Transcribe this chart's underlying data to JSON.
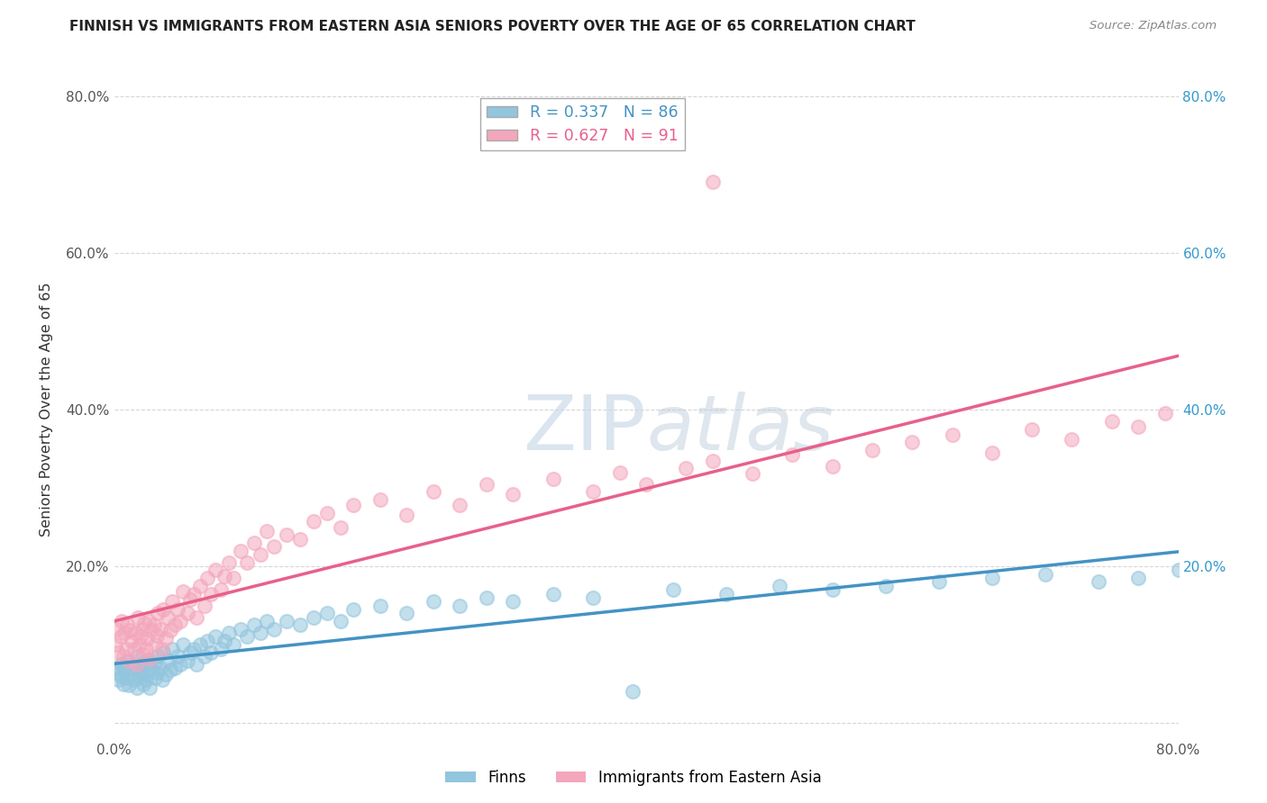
{
  "title": "FINNISH VS IMMIGRANTS FROM EASTERN ASIA SENIORS POVERTY OVER THE AGE OF 65 CORRELATION CHART",
  "source": "Source: ZipAtlas.com",
  "ylabel": "Seniors Poverty Over the Age of 65",
  "xlim": [
    0.0,
    0.8
  ],
  "ylim": [
    -0.02,
    0.82
  ],
  "ytick_positions": [
    0.0,
    0.2,
    0.4,
    0.6,
    0.8
  ],
  "ytick_labels_left": [
    "",
    "20.0%",
    "40.0%",
    "60.0%",
    "80.0%"
  ],
  "ytick_labels_right": [
    "",
    "20.0%",
    "40.0%",
    "60.0%",
    "80.0%"
  ],
  "r_finns": 0.337,
  "n_finns": 86,
  "r_eastern_asia": 0.627,
  "n_eastern_asia": 91,
  "finns_color": "#92c5de",
  "eastern_asia_color": "#f4a6bc",
  "finns_line_color": "#4393c3",
  "eastern_asia_line_color": "#e8608a",
  "legend_finns_label": "Finns",
  "legend_eastern_asia_label": "Immigrants from Eastern Asia",
  "background_color": "#ffffff",
  "grid_color": "#cccccc",
  "finns_scatter_x": [
    0.001,
    0.002,
    0.003,
    0.005,
    0.006,
    0.007,
    0.008,
    0.009,
    0.01,
    0.011,
    0.012,
    0.013,
    0.015,
    0.016,
    0.017,
    0.018,
    0.019,
    0.02,
    0.021,
    0.022,
    0.023,
    0.024,
    0.025,
    0.026,
    0.027,
    0.028,
    0.03,
    0.031,
    0.032,
    0.033,
    0.035,
    0.036,
    0.037,
    0.039,
    0.04,
    0.042,
    0.044,
    0.046,
    0.048,
    0.05,
    0.052,
    0.055,
    0.057,
    0.06,
    0.062,
    0.065,
    0.068,
    0.07,
    0.073,
    0.076,
    0.08,
    0.083,
    0.086,
    0.09,
    0.095,
    0.1,
    0.105,
    0.11,
    0.115,
    0.12,
    0.13,
    0.14,
    0.15,
    0.16,
    0.17,
    0.18,
    0.2,
    0.22,
    0.24,
    0.26,
    0.28,
    0.3,
    0.33,
    0.36,
    0.39,
    0.42,
    0.46,
    0.5,
    0.54,
    0.58,
    0.62,
    0.66,
    0.7,
    0.74,
    0.77,
    0.8
  ],
  "finns_scatter_y": [
    0.07,
    0.065,
    0.055,
    0.06,
    0.075,
    0.05,
    0.068,
    0.058,
    0.08,
    0.048,
    0.072,
    0.063,
    0.055,
    0.07,
    0.045,
    0.085,
    0.06,
    0.065,
    0.072,
    0.05,
    0.078,
    0.055,
    0.062,
    0.08,
    0.045,
    0.068,
    0.075,
    0.058,
    0.065,
    0.085,
    0.07,
    0.055,
    0.09,
    0.062,
    0.08,
    0.068,
    0.095,
    0.07,
    0.085,
    0.075,
    0.1,
    0.08,
    0.09,
    0.095,
    0.075,
    0.1,
    0.085,
    0.105,
    0.09,
    0.11,
    0.095,
    0.105,
    0.115,
    0.1,
    0.12,
    0.11,
    0.125,
    0.115,
    0.13,
    0.12,
    0.13,
    0.125,
    0.135,
    0.14,
    0.13,
    0.145,
    0.15,
    0.14,
    0.155,
    0.15,
    0.16,
    0.155,
    0.165,
    0.16,
    0.04,
    0.17,
    0.165,
    0.175,
    0.17,
    0.175,
    0.18,
    0.185,
    0.19,
    0.18,
    0.185,
    0.195
  ],
  "eastern_asia_scatter_x": [
    0.001,
    0.002,
    0.003,
    0.005,
    0.006,
    0.007,
    0.008,
    0.009,
    0.01,
    0.011,
    0.012,
    0.013,
    0.015,
    0.016,
    0.017,
    0.018,
    0.019,
    0.02,
    0.021,
    0.022,
    0.023,
    0.024,
    0.025,
    0.026,
    0.027,
    0.028,
    0.03,
    0.031,
    0.032,
    0.033,
    0.035,
    0.036,
    0.037,
    0.039,
    0.04,
    0.042,
    0.044,
    0.046,
    0.048,
    0.05,
    0.052,
    0.055,
    0.057,
    0.06,
    0.062,
    0.065,
    0.068,
    0.07,
    0.073,
    0.076,
    0.08,
    0.083,
    0.086,
    0.09,
    0.095,
    0.1,
    0.105,
    0.11,
    0.115,
    0.12,
    0.13,
    0.14,
    0.15,
    0.16,
    0.17,
    0.18,
    0.2,
    0.22,
    0.24,
    0.26,
    0.28,
    0.3,
    0.33,
    0.36,
    0.38,
    0.4,
    0.43,
    0.45,
    0.48,
    0.51,
    0.54,
    0.57,
    0.6,
    0.63,
    0.66,
    0.69,
    0.72,
    0.75,
    0.77,
    0.79,
    0.45
  ],
  "eastern_asia_scatter_y": [
    0.1,
    0.12,
    0.09,
    0.11,
    0.13,
    0.085,
    0.115,
    0.095,
    0.125,
    0.08,
    0.118,
    0.105,
    0.095,
    0.115,
    0.075,
    0.135,
    0.1,
    0.11,
    0.12,
    0.088,
    0.128,
    0.095,
    0.108,
    0.13,
    0.082,
    0.118,
    0.125,
    0.1,
    0.112,
    0.14,
    0.12,
    0.095,
    0.145,
    0.108,
    0.135,
    0.118,
    0.155,
    0.125,
    0.145,
    0.13,
    0.168,
    0.14,
    0.158,
    0.165,
    0.135,
    0.175,
    0.15,
    0.185,
    0.165,
    0.195,
    0.17,
    0.188,
    0.205,
    0.185,
    0.22,
    0.205,
    0.23,
    0.215,
    0.245,
    0.225,
    0.24,
    0.235,
    0.258,
    0.268,
    0.25,
    0.278,
    0.285,
    0.265,
    0.295,
    0.278,
    0.305,
    0.292,
    0.312,
    0.295,
    0.32,
    0.305,
    0.325,
    0.335,
    0.318,
    0.342,
    0.328,
    0.348,
    0.358,
    0.368,
    0.345,
    0.375,
    0.362,
    0.385,
    0.378,
    0.395,
    0.69
  ]
}
